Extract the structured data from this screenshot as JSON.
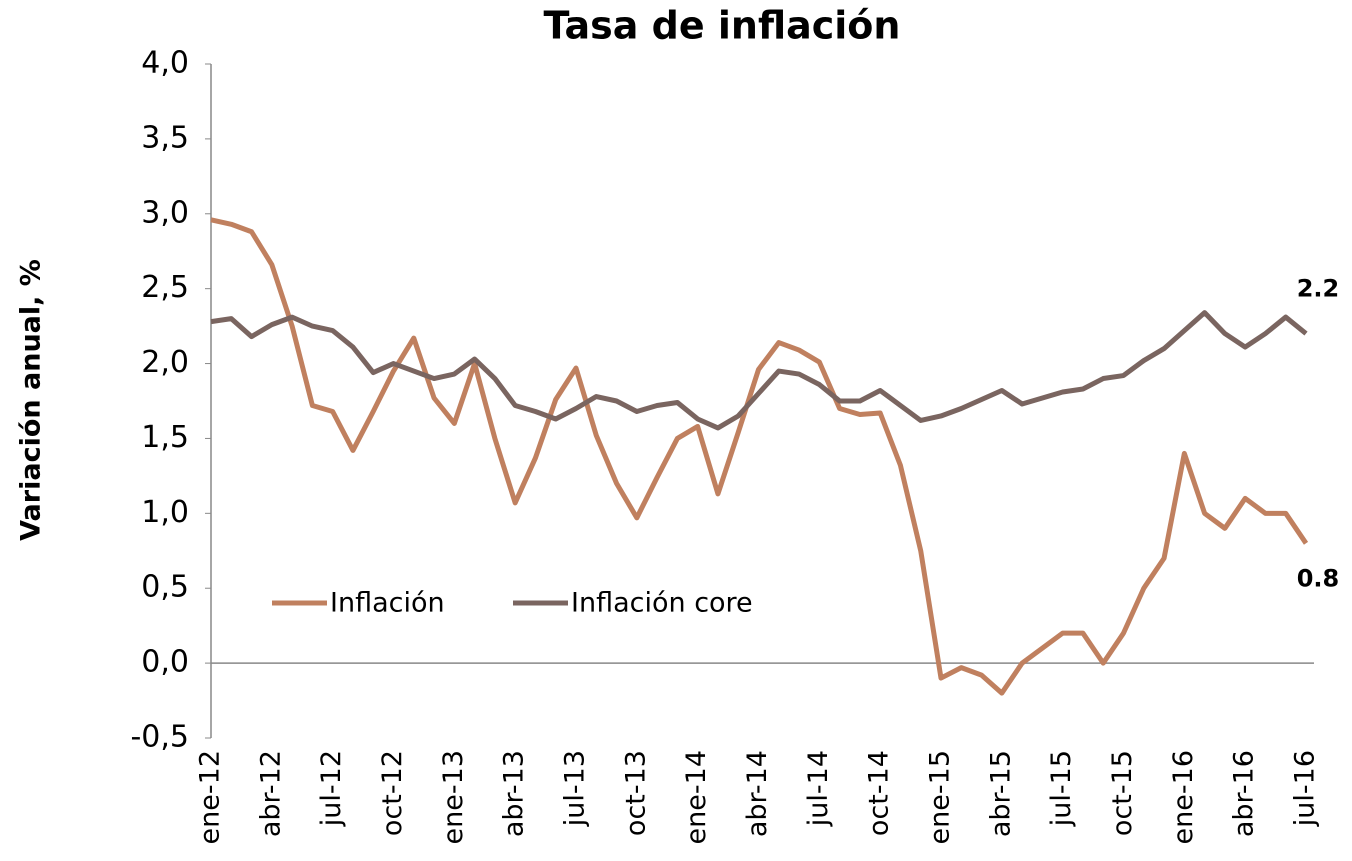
{
  "chart_data": {
    "type": "line",
    "title": "Tasa de inflación",
    "y_label": "Variación anual, %",
    "categories": [
      "ene-12",
      null,
      null,
      "abr-12",
      null,
      null,
      "jul-12",
      null,
      null,
      "oct-12",
      null,
      null,
      "ene-13",
      null,
      null,
      "abr-13",
      null,
      null,
      "jul-13",
      null,
      null,
      "oct-13",
      null,
      null,
      "ene-14",
      null,
      null,
      "abr-14",
      null,
      null,
      "jul-14",
      null,
      null,
      "oct-14",
      null,
      null,
      "ene-15",
      null,
      null,
      "abr-15",
      null,
      null,
      "jul-15",
      null,
      null,
      "oct-15",
      null,
      null,
      "ene-16",
      null,
      null,
      "abr-16",
      null,
      null,
      "jul-16"
    ],
    "series": [
      {
        "name": "Inflación",
        "color": "#c0805f",
        "values": [
          2.96,
          2.93,
          2.88,
          2.66,
          2.25,
          1.72,
          1.68,
          1.42,
          1.68,
          1.95,
          2.17,
          1.77,
          1.6,
          2.0,
          1.5,
          1.07,
          1.37,
          1.76,
          1.97,
          1.52,
          1.2,
          0.97,
          1.24,
          1.5,
          1.58,
          1.13,
          1.54,
          1.96,
          2.14,
          2.09,
          2.01,
          1.7,
          1.66,
          1.67,
          1.32,
          0.75,
          -0.1,
          -0.03,
          -0.08,
          -0.2,
          0.0,
          0.1,
          0.2,
          0.2,
          0.0,
          0.2,
          0.5,
          0.7,
          1.4,
          1.0,
          0.9,
          1.1,
          1.0,
          1.0,
          0.8
        ]
      },
      {
        "name": "Inflación core",
        "color": "#7a6560",
        "values": [
          2.28,
          2.3,
          2.18,
          2.26,
          2.31,
          2.25,
          2.22,
          2.11,
          1.94,
          2.0,
          1.95,
          1.9,
          1.93,
          2.03,
          1.9,
          1.72,
          1.68,
          1.63,
          1.7,
          1.78,
          1.75,
          1.68,
          1.72,
          1.74,
          1.63,
          1.57,
          1.65,
          1.8,
          1.95,
          1.93,
          1.86,
          1.75,
          1.75,
          1.82,
          1.72,
          1.62,
          1.65,
          1.7,
          1.76,
          1.82,
          1.73,
          1.77,
          1.81,
          1.83,
          1.9,
          1.92,
          2.02,
          2.1,
          2.22,
          2.34,
          2.2,
          2.11,
          2.2,
          2.31,
          2.2
        ]
      }
    ],
    "ylim": [
      -0.5,
      4.0
    ],
    "yticks": [
      {
        "value": -0.5,
        "label": "-0,5"
      },
      {
        "value": 0,
        "label": "0,0"
      },
      {
        "value": 0.5,
        "label": "0,5"
      },
      {
        "value": 1,
        "label": "1,0"
      },
      {
        "value": 1.5,
        "label": "1,5"
      },
      {
        "value": 2,
        "label": "2,0"
      },
      {
        "value": 2.5,
        "label": "2,5"
      },
      {
        "value": 3,
        "label": "3,0"
      },
      {
        "value": 3.5,
        "label": "3,5"
      },
      {
        "value": 4,
        "label": "4,0"
      }
    ],
    "grid": false
  }
}
